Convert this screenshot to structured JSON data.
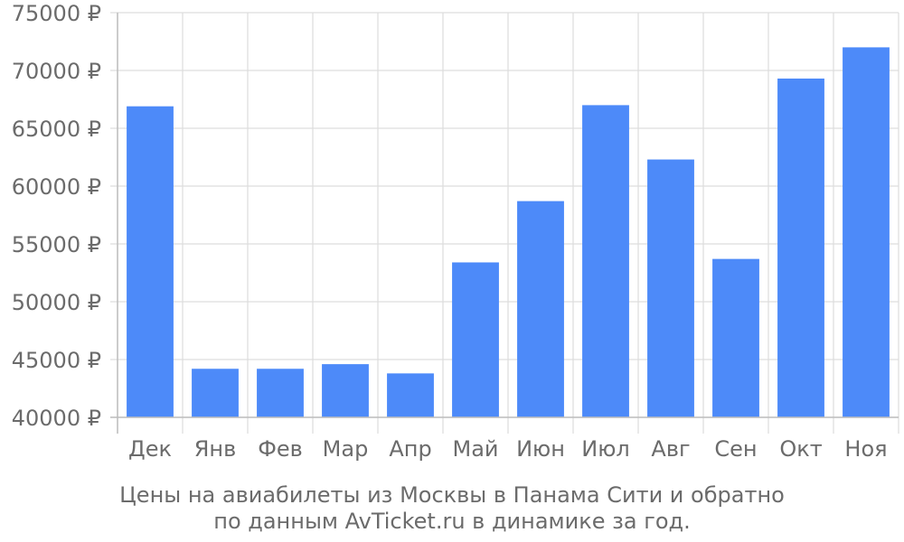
{
  "chart_data": {
    "type": "bar",
    "categories": [
      "Дек",
      "Янв",
      "Фев",
      "Мар",
      "Апр",
      "Май",
      "Июн",
      "Июл",
      "Авг",
      "Сен",
      "Окт",
      "Ноя"
    ],
    "values": [
      66900,
      44200,
      44200,
      44600,
      43800,
      53400,
      58700,
      67000,
      62300,
      53700,
      69300,
      72000
    ],
    "ylim": [
      40000,
      75000
    ],
    "yticks": [
      40000,
      45000,
      50000,
      55000,
      60000,
      65000,
      70000,
      75000
    ],
    "y_tick_suffix": " ₽",
    "grid": true,
    "bar_color": "#4d8af9",
    "caption_lines": [
      "Цены на авиабилеты из Москвы в Панама Сити и обратно",
      "по данным AvTicket.ru в динамике за год."
    ]
  }
}
